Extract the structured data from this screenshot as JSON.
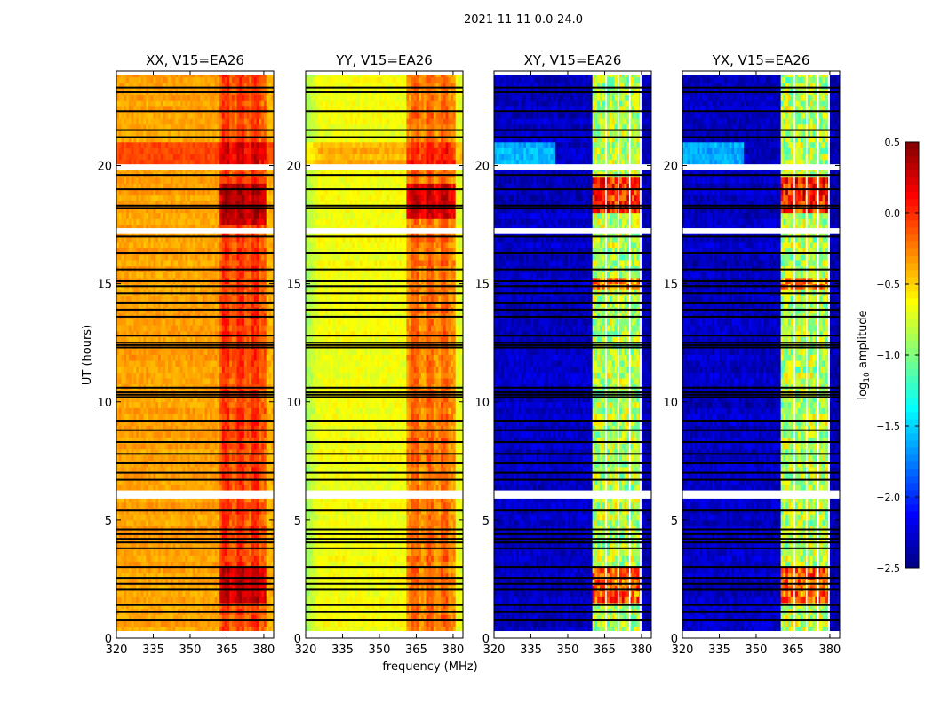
{
  "chart_data": {
    "type": "heatmap",
    "title": "2021-11-11 0.0-24.0",
    "xlabel": "frequency (MHz)",
    "ylabel": "UT (hours)",
    "colorbar": {
      "label_prefix": "log",
      "label_sub": "10",
      "label_suffix": " amplitude",
      "range": [
        -2.5,
        0.5
      ],
      "ticks": [
        0.5,
        0.0,
        -0.5,
        -1.0,
        -1.5,
        -2.0,
        -2.5
      ],
      "tick_labels": [
        "0.5",
        "0.0",
        "−0.5",
        "−1.0",
        "−1.5",
        "−2.0",
        "−2.5"
      ],
      "colormap": "jet"
    },
    "xlim": [
      320,
      384
    ],
    "ylim": [
      0,
      24
    ],
    "xticks": [
      320,
      335,
      350,
      365,
      380
    ],
    "xtick_labels": [
      "320",
      "335",
      "350",
      "365",
      "380"
    ],
    "yticks": [
      0,
      5,
      10,
      15,
      20
    ],
    "ytick_labels": [
      "0",
      "5",
      "10",
      "15",
      "20"
    ],
    "flagged_times_hours": [
      23.3,
      23.1,
      22.3,
      21.5,
      21.2,
      19.6,
      19.0,
      18.3,
      18.2,
      17.0,
      16.3,
      15.6,
      15.1,
      14.9,
      14.6,
      14.2,
      13.9,
      13.6,
      12.8,
      12.5,
      12.4,
      12.3,
      10.6,
      10.4,
      10.3,
      10.2,
      9.2,
      8.8,
      8.3,
      7.8,
      7.4,
      7.0,
      6.7,
      5.4,
      4.6,
      4.4,
      4.2,
      4.05,
      3.8,
      3.0,
      2.55,
      2.3,
      2.05,
      1.4,
      1.1,
      0.75
    ],
    "gap_intervals_hours": [
      [
        19.8,
        20.05
      ],
      [
        17.1,
        17.35
      ],
      [
        5.9,
        6.25
      ],
      [
        23.85,
        24.0
      ],
      [
        0.0,
        0.3
      ]
    ],
    "panels": [
      {
        "title": "XX, V15=EA26",
        "base": -0.35,
        "band": [
          362,
          381
        ],
        "band_level": -0.15,
        "stripe_boost": 0.15,
        "noise": 0.08,
        "band_noise": 0.12,
        "edge_drop": 0.0,
        "row_mods": [
          {
            "t": [
              20.1,
              21.0
            ],
            "boost": 0.3,
            "where": "all"
          },
          {
            "t": [
              17.5,
              19.3
            ],
            "boost": 0.4,
            "where": "band"
          },
          {
            "t": [
              1.5,
              3.0
            ],
            "boost": 0.35,
            "where": "band"
          }
        ],
        "flag_cols": []
      },
      {
        "title": "YY, V15=EA26",
        "base": -0.65,
        "band": [
          361,
          381
        ],
        "band_level": -0.3,
        "stripe_boost": 0.15,
        "noise": 0.08,
        "band_noise": 0.12,
        "edge_drop": 0.25,
        "row_mods": [
          {
            "t": [
              20.1,
              21.0
            ],
            "boost": 0.25,
            "where": "all"
          },
          {
            "t": [
              17.8,
              19.3
            ],
            "boost": 0.45,
            "where": "band"
          }
        ],
        "flag_cols": []
      },
      {
        "title": "XY, V15=EA26",
        "base": -2.3,
        "band": [
          360,
          380
        ],
        "band_level": -0.85,
        "stripe_boost": 0.0,
        "noise": 0.12,
        "band_noise": 0.35,
        "edge_drop": 0.0,
        "row_mods": [
          {
            "t": [
              20.1,
              21.0
            ],
            "boost": 0.7,
            "where": "left"
          },
          {
            "t": [
              18.0,
              19.4
            ],
            "boost": 0.9,
            "where": "band"
          },
          {
            "t": [
              1.5,
              3.0
            ],
            "boost": 0.7,
            "where": "band"
          },
          {
            "t": [
              14.8,
              15.2
            ],
            "boost": 0.6,
            "where": "band"
          }
        ],
        "flag_cols": [
          365.5,
          370.5,
          375.2,
          379.6
        ]
      },
      {
        "title": "YX, V15=EA26",
        "base": -2.3,
        "band": [
          360,
          380
        ],
        "band_level": -0.85,
        "stripe_boost": 0.0,
        "noise": 0.12,
        "band_noise": 0.35,
        "edge_drop": 0.0,
        "row_mods": [
          {
            "t": [
              20.1,
              21.0
            ],
            "boost": 0.7,
            "where": "left"
          },
          {
            "t": [
              18.0,
              19.4
            ],
            "boost": 0.9,
            "where": "band"
          },
          {
            "t": [
              1.5,
              3.0
            ],
            "boost": 0.7,
            "where": "band"
          },
          {
            "t": [
              14.8,
              15.2
            ],
            "boost": 0.6,
            "where": "band"
          }
        ],
        "flag_cols": [
          365.5,
          370.5,
          375.2,
          379.6
        ]
      }
    ],
    "stripes": [
      [
        363,
        366
      ],
      [
        369,
        372
      ],
      [
        375,
        378
      ]
    ]
  }
}
